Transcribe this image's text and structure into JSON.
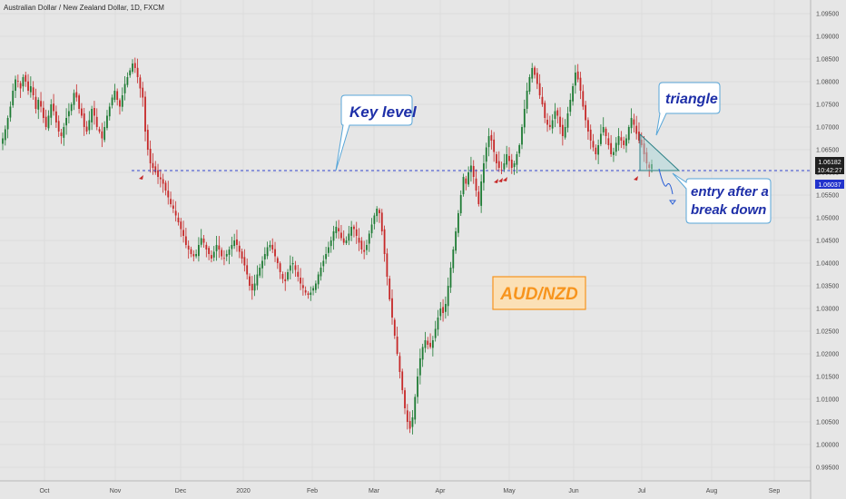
{
  "header": {
    "title": "Australian Dollar / New Zealand Dollar, 1D, FXCM"
  },
  "colors": {
    "background": "#e6e6e6",
    "bull": "#1e7b34",
    "bear": "#c62828",
    "key_level": "#3344cc",
    "callout_text": "#1e2fa8",
    "pair_label": "#f7941d",
    "price_tag": "#202020",
    "level_tag": "#2233cc"
  },
  "annotations": {
    "key_level": "Key level",
    "triangle": "triangle",
    "entry_line1": "entry after a",
    "entry_line2": "break down",
    "pair": "AUD/NZD"
  },
  "price_tags": {
    "last_price": "1.06182",
    "countdown": "10:42:27",
    "key_level": "1.06037"
  },
  "chart_data": {
    "type": "candlestick",
    "title": "Australian Dollar / New Zealand Dollar, 1D, FXCM",
    "x_tick_labels": [
      "Oct",
      "Nov",
      "Dec",
      "2020",
      "Feb",
      "Mar",
      "Apr",
      "May",
      "Jun",
      "Jul",
      "Aug",
      "Sep"
    ],
    "y_tick_labels": [
      "1.09500",
      "1.09000",
      "1.08500",
      "1.08000",
      "1.07500",
      "1.07000",
      "1.06500",
      "1.06000",
      "1.05500",
      "1.05000",
      "1.04500",
      "1.04000",
      "1.03500",
      "1.03000",
      "1.02500",
      "1.02000",
      "1.01500",
      "1.01000",
      "1.00500",
      "1.00000",
      "0.99500"
    ],
    "ylim": [
      0.992,
      1.098
    ],
    "key_level": 1.0604,
    "last_close": 1.06182,
    "close_path": [
      1.0675,
      1.0695,
      1.072,
      1.0745,
      1.078,
      1.0805,
      1.08,
      1.0785,
      1.081,
      1.08,
      1.078,
      1.079,
      1.077,
      1.074,
      1.076,
      1.0745,
      1.072,
      1.07,
      1.0725,
      1.075,
      1.0735,
      1.071,
      1.069,
      1.068,
      1.07,
      1.072,
      1.0735,
      1.075,
      1.0775,
      1.0765,
      1.074,
      1.0725,
      1.07,
      1.069,
      1.0715,
      1.074,
      1.0725,
      1.07,
      1.069,
      1.0675,
      1.07,
      1.0725,
      1.0745,
      1.0765,
      1.078,
      1.076,
      1.0745,
      1.077,
      1.0795,
      1.081,
      1.0825,
      1.084,
      1.083,
      1.081,
      1.0785,
      1.0765,
      1.069,
      1.065,
      1.062,
      1.061,
      1.06,
      1.059,
      1.0585,
      1.0575,
      1.056,
      1.0545,
      1.053,
      1.052,
      1.0505,
      1.049,
      1.0475,
      1.046,
      1.044,
      1.043,
      1.042,
      1.0415,
      1.042,
      1.044,
      1.0455,
      1.0445,
      1.043,
      1.042,
      1.041,
      1.0425,
      1.044,
      1.043,
      1.0415,
      1.041,
      1.042,
      1.043,
      1.044,
      1.045,
      1.044,
      1.0425,
      1.041,
      1.0395,
      1.0375,
      1.035,
      1.034,
      1.0355,
      1.0375,
      1.039,
      1.0405,
      1.042,
      1.0435,
      1.044,
      1.043,
      1.0415,
      1.04,
      1.038,
      1.0365,
      1.036,
      1.038,
      1.0395,
      1.04,
      1.0385,
      1.037,
      1.0355,
      1.0345,
      1.0335,
      1.033,
      1.0335,
      1.0345,
      1.0355,
      1.0375,
      1.039,
      1.0405,
      1.042,
      1.0435,
      1.045,
      1.047,
      1.048,
      1.047,
      1.0455,
      1.0445,
      1.045,
      1.0465,
      1.048,
      1.0475,
      1.046,
      1.0445,
      1.043,
      1.0425,
      1.044,
      1.0465,
      1.0485,
      1.0505,
      1.052,
      1.051,
      1.047,
      1.042,
      1.037,
      1.032,
      1.028,
      1.024,
      1.02,
      1.016,
      1.012,
      1.008,
      1.005,
      1.0035,
      1.006,
      1.0105,
      1.015,
      1.019,
      1.0215,
      1.023,
      1.022,
      1.0215,
      1.023,
      1.0255,
      1.028,
      1.03,
      1.029,
      1.031,
      1.035,
      1.039,
      1.043,
      1.047,
      1.051,
      1.055,
      1.059,
      1.0575,
      1.06,
      1.0615,
      1.059,
      1.056,
      1.053,
      1.058,
      1.062,
      1.0655,
      1.068,
      1.067,
      1.0645,
      1.062,
      1.061,
      1.0605,
      1.062,
      1.064,
      1.0625,
      1.061,
      1.062,
      1.064,
      1.066,
      1.07,
      1.074,
      1.078,
      1.081,
      1.083,
      1.0815,
      1.0795,
      1.077,
      1.075,
      1.072,
      1.0705,
      1.07,
      1.0715,
      1.0735,
      1.0725,
      1.07,
      1.068,
      1.07,
      1.073,
      1.076,
      1.079,
      1.082,
      1.0805,
      1.078,
      1.0745,
      1.0715,
      1.069,
      1.067,
      1.0655,
      1.064,
      1.066,
      1.0685,
      1.07,
      1.068,
      1.066,
      1.064,
      1.0645,
      1.0665,
      1.068,
      1.067,
      1.066,
      1.0675,
      1.07,
      1.072,
      1.0705,
      1.0685,
      1.067,
      1.066,
      1.064,
      1.062,
      1.061,
      1.0618
    ]
  }
}
